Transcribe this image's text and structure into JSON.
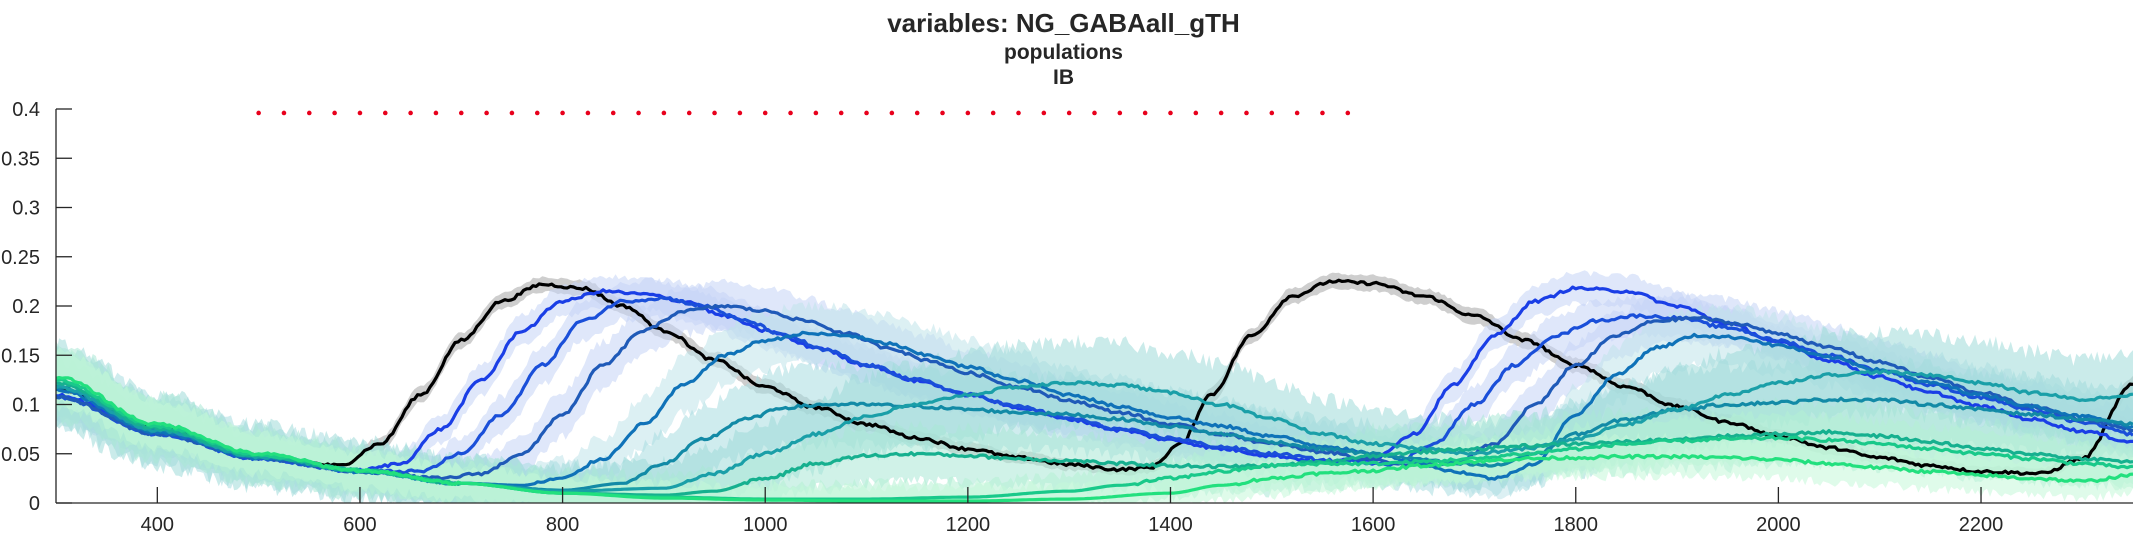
{
  "title": {
    "line1": "variables: NG_GABAall_gTH",
    "line2": "populations",
    "line3": "IB"
  },
  "chart_data": {
    "type": "line",
    "xlim": [
      300,
      2350
    ],
    "ylim": [
      0,
      0.4
    ],
    "xticks": [
      400,
      600,
      800,
      1000,
      1200,
      1400,
      1600,
      1800,
      2000,
      2200
    ],
    "yticks": [
      0,
      0.05,
      0.1,
      0.15,
      0.2,
      0.25,
      0.3,
      0.35,
      0.4
    ],
    "ytick_labels": [
      "0",
      "0.05",
      "0.1",
      "0.15",
      "0.2",
      "0.25",
      "0.3",
      "0.35",
      "0.4"
    ],
    "grid": false,
    "legend": "none",
    "markers": {
      "color": "#e8001c",
      "y": 0.396,
      "x": [
        500,
        525,
        550,
        575,
        600,
        625,
        650,
        675,
        700,
        725,
        750,
        775,
        800,
        825,
        850,
        875,
        900,
        925,
        950,
        975,
        1000,
        1025,
        1050,
        1075,
        1100,
        1125,
        1150,
        1175,
        1200,
        1225,
        1250,
        1275,
        1300,
        1325,
        1350,
        1375,
        1400,
        1425,
        1450,
        1475,
        1500,
        1525,
        1550,
        1575
      ]
    },
    "series": [
      {
        "color": "#000000",
        "band": "#a6a6a6",
        "band_halfwidth": 0.006,
        "x": [
          300,
          400,
          500,
          580,
          620,
          660,
          700,
          740,
          780,
          820,
          860,
          900,
          950,
          1000,
          1050,
          1100,
          1150,
          1200,
          1250,
          1300,
          1350,
          1380,
          1410,
          1440,
          1480,
          1520,
          1560,
          1600,
          1650,
          1700,
          1750,
          1800,
          1850,
          1900,
          1950,
          2000,
          2050,
          2100,
          2150,
          2200,
          2260,
          2300,
          2350
        ],
        "y": [
          0.115,
          0.075,
          0.048,
          0.038,
          0.06,
          0.11,
          0.165,
          0.205,
          0.222,
          0.218,
          0.2,
          0.175,
          0.145,
          0.118,
          0.097,
          0.08,
          0.066,
          0.055,
          0.046,
          0.039,
          0.034,
          0.036,
          0.06,
          0.11,
          0.17,
          0.21,
          0.225,
          0.223,
          0.21,
          0.19,
          0.165,
          0.14,
          0.118,
          0.098,
          0.082,
          0.068,
          0.056,
          0.046,
          0.038,
          0.032,
          0.03,
          0.045,
          0.12
        ]
      },
      {
        "color": "#1a3ee6",
        "band": "#c5d3f5",
        "band_halfwidth": 0.012,
        "x": [
          300,
          400,
          500,
          600,
          640,
          680,
          720,
          760,
          800,
          840,
          880,
          920,
          960,
          1000,
          1050,
          1100,
          1150,
          1200,
          1250,
          1300,
          1350,
          1400,
          1450,
          1500,
          1550,
          1600,
          1640,
          1680,
          1720,
          1760,
          1800,
          1850,
          1900,
          1950,
          2000,
          2050,
          2100,
          2150,
          2200,
          2250,
          2300,
          2350
        ],
        "y": [
          0.11,
          0.072,
          0.046,
          0.033,
          0.04,
          0.075,
          0.125,
          0.175,
          0.205,
          0.215,
          0.212,
          0.205,
          0.19,
          0.175,
          0.158,
          0.14,
          0.124,
          0.11,
          0.097,
          0.085,
          0.074,
          0.064,
          0.055,
          0.048,
          0.042,
          0.045,
          0.07,
          0.12,
          0.17,
          0.205,
          0.218,
          0.215,
          0.2,
          0.182,
          0.163,
          0.145,
          0.128,
          0.112,
          0.098,
          0.085,
          0.073,
          0.062
        ]
      },
      {
        "color": "#1a4fd9",
        "band": "#c5d3f5",
        "band_halfwidth": 0.015,
        "x": [
          300,
          400,
          500,
          600,
          660,
          700,
          740,
          780,
          820,
          860,
          900,
          940,
          980,
          1020,
          1060,
          1100,
          1150,
          1200,
          1250,
          1300,
          1350,
          1400,
          1450,
          1500,
          1560,
          1620,
          1660,
          1700,
          1740,
          1780,
          1820,
          1860,
          1900,
          1950,
          2000,
          2050,
          2100,
          2150,
          2200,
          2250,
          2300,
          2350
        ],
        "y": [
          0.108,
          0.07,
          0.045,
          0.032,
          0.032,
          0.05,
          0.09,
          0.14,
          0.185,
          0.205,
          0.208,
          0.2,
          0.185,
          0.17,
          0.155,
          0.14,
          0.125,
          0.11,
          0.098,
          0.086,
          0.075,
          0.066,
          0.057,
          0.05,
          0.043,
          0.04,
          0.06,
          0.1,
          0.14,
          0.17,
          0.185,
          0.19,
          0.188,
          0.178,
          0.165,
          0.15,
          0.135,
          0.12,
          0.107,
          0.094,
          0.082,
          0.07
        ]
      },
      {
        "color": "#1f5ab8",
        "band": "#c5d3f5",
        "band_halfwidth": 0.018,
        "x": [
          300,
          400,
          500,
          600,
          680,
          720,
          760,
          800,
          840,
          880,
          920,
          960,
          1000,
          1040,
          1080,
          1120,
          1160,
          1200,
          1250,
          1300,
          1350,
          1400,
          1450,
          1500,
          1550,
          1600,
          1640,
          1680,
          1720,
          1760,
          1800,
          1840,
          1880,
          1920,
          1960,
          2000,
          2050,
          2100,
          2150,
          2200,
          2250,
          2300,
          2350
        ],
        "y": [
          0.108,
          0.07,
          0.045,
          0.032,
          0.025,
          0.03,
          0.05,
          0.09,
          0.14,
          0.175,
          0.195,
          0.2,
          0.195,
          0.185,
          0.172,
          0.158,
          0.145,
          0.132,
          0.118,
          0.104,
          0.092,
          0.08,
          0.07,
          0.06,
          0.052,
          0.044,
          0.038,
          0.04,
          0.06,
          0.1,
          0.14,
          0.17,
          0.185,
          0.188,
          0.182,
          0.172,
          0.158,
          0.143,
          0.127,
          0.112,
          0.098,
          0.085,
          0.075
        ]
      },
      {
        "color": "#0f72b8",
        "band": "#bfe3ea",
        "band_halfwidth": 0.022,
        "x": [
          300,
          400,
          500,
          600,
          700,
          760,
          800,
          840,
          880,
          920,
          960,
          1000,
          1040,
          1080,
          1120,
          1160,
          1200,
          1250,
          1300,
          1350,
          1400,
          1450,
          1500,
          1550,
          1600,
          1640,
          1680,
          1720,
          1760,
          1800,
          1840,
          1880,
          1920,
          1960,
          2000,
          2050,
          2100,
          2150,
          2200,
          2250,
          2300,
          2350
        ],
        "y": [
          0.115,
          0.072,
          0.046,
          0.032,
          0.02,
          0.018,
          0.025,
          0.045,
          0.08,
          0.12,
          0.15,
          0.165,
          0.172,
          0.17,
          0.162,
          0.15,
          0.138,
          0.124,
          0.11,
          0.098,
          0.087,
          0.078,
          0.068,
          0.058,
          0.05,
          0.042,
          0.032,
          0.025,
          0.04,
          0.09,
          0.13,
          0.158,
          0.17,
          0.168,
          0.16,
          0.148,
          0.135,
          0.122,
          0.11,
          0.098,
          0.088,
          0.078
        ]
      },
      {
        "color": "#128aa6",
        "band": "#a8dde0",
        "band_halfwidth": 0.03,
        "x": [
          300,
          400,
          500,
          600,
          700,
          800,
          860,
          900,
          940,
          980,
          1020,
          1060,
          1100,
          1150,
          1200,
          1250,
          1300,
          1350,
          1400,
          1450,
          1500,
          1550,
          1600,
          1640,
          1680,
          1720,
          1760,
          1800,
          1850,
          1900,
          1950,
          2000,
          2050,
          2100,
          2150,
          2200,
          2250,
          2300,
          2350
        ],
        "y": [
          0.118,
          0.074,
          0.047,
          0.033,
          0.02,
          0.013,
          0.02,
          0.04,
          0.065,
          0.085,
          0.097,
          0.1,
          0.1,
          0.098,
          0.095,
          0.092,
          0.09,
          0.085,
          0.078,
          0.07,
          0.062,
          0.055,
          0.05,
          0.045,
          0.04,
          0.038,
          0.05,
          0.07,
          0.085,
          0.095,
          0.1,
          0.102,
          0.105,
          0.105,
          0.1,
          0.095,
          0.09,
          0.085,
          0.08
        ]
      },
      {
        "color": "#1a9fa8",
        "band": "#9edbd8",
        "band_halfwidth": 0.032,
        "x": [
          300,
          400,
          500,
          600,
          700,
          800,
          900,
          950,
          1000,
          1050,
          1100,
          1150,
          1200,
          1250,
          1300,
          1350,
          1400,
          1450,
          1500,
          1550,
          1600,
          1650,
          1700,
          1750,
          1800,
          1850,
          1900,
          1950,
          2000,
          2050,
          2100,
          2150,
          2200,
          2250,
          2300,
          2350
        ],
        "y": [
          0.118,
          0.074,
          0.047,
          0.033,
          0.02,
          0.012,
          0.015,
          0.03,
          0.05,
          0.07,
          0.088,
          0.1,
          0.11,
          0.118,
          0.122,
          0.12,
          0.112,
          0.1,
          0.085,
          0.07,
          0.06,
          0.055,
          0.05,
          0.055,
          0.065,
          0.08,
          0.095,
          0.11,
          0.122,
          0.13,
          0.133,
          0.13,
          0.122,
          0.112,
          0.105,
          0.11
        ]
      },
      {
        "color": "#16b08f",
        "band": "#a9e8d6",
        "band_halfwidth": 0.028,
        "x": [
          300,
          400,
          500,
          600,
          700,
          800,
          900,
          950,
          1000,
          1050,
          1100,
          1150,
          1200,
          1250,
          1300,
          1350,
          1400,
          1450,
          1500,
          1550,
          1600,
          1650,
          1700,
          1750,
          1800,
          1850,
          1900,
          1950,
          2000,
          2050,
          2100,
          2150,
          2200,
          2250,
          2300,
          2350
        ],
        "y": [
          0.122,
          0.076,
          0.048,
          0.033,
          0.02,
          0.01,
          0.008,
          0.012,
          0.025,
          0.04,
          0.048,
          0.05,
          0.048,
          0.045,
          0.043,
          0.04,
          0.038,
          0.037,
          0.038,
          0.042,
          0.048,
          0.052,
          0.055,
          0.058,
          0.06,
          0.062,
          0.065,
          0.068,
          0.07,
          0.072,
          0.068,
          0.062,
          0.055,
          0.05,
          0.045,
          0.042
        ]
      },
      {
        "color": "#19c98a",
        "band": "#b5f0d4",
        "band_halfwidth": 0.022,
        "x": [
          300,
          400,
          500,
          600,
          700,
          800,
          900,
          1000,
          1100,
          1200,
          1300,
          1350,
          1400,
          1450,
          1500,
          1550,
          1600,
          1650,
          1700,
          1750,
          1800,
          1850,
          1900,
          1950,
          2000,
          2050,
          2100,
          2150,
          2200,
          2250,
          2300,
          2350
        ],
        "y": [
          0.125,
          0.078,
          0.049,
          0.033,
          0.02,
          0.01,
          0.006,
          0.004,
          0.004,
          0.006,
          0.012,
          0.018,
          0.025,
          0.032,
          0.038,
          0.04,
          0.04,
          0.042,
          0.045,
          0.05,
          0.055,
          0.06,
          0.063,
          0.065,
          0.066,
          0.064,
          0.06,
          0.055,
          0.05,
          0.045,
          0.04,
          0.036
        ]
      },
      {
        "color": "#22e07e",
        "band": "#c4f7d9",
        "band_halfwidth": 0.02,
        "x": [
          300,
          400,
          500,
          600,
          700,
          800,
          900,
          1000,
          1100,
          1200,
          1300,
          1400,
          1450,
          1500,
          1550,
          1600,
          1650,
          1700,
          1750,
          1800,
          1850,
          1900,
          1950,
          2000,
          2050,
          2100,
          2150,
          2200,
          2250,
          2300,
          2350
        ],
        "y": [
          0.128,
          0.08,
          0.05,
          0.033,
          0.02,
          0.01,
          0.005,
          0.003,
          0.002,
          0.002,
          0.004,
          0.01,
          0.018,
          0.025,
          0.03,
          0.033,
          0.038,
          0.042,
          0.045,
          0.046,
          0.047,
          0.047,
          0.046,
          0.044,
          0.04,
          0.036,
          0.032,
          0.028,
          0.025,
          0.022,
          0.028
        ]
      }
    ]
  }
}
